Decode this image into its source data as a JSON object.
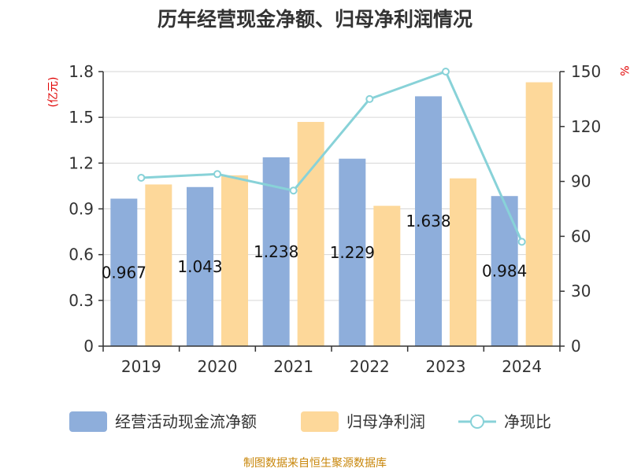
{
  "chart_data": {
    "type": "bar",
    "title": "历年经营现金净额、归母净利润情况",
    "categories": [
      "2019",
      "2020",
      "2021",
      "2022",
      "2023",
      "2024"
    ],
    "series": [
      {
        "name": "经营活动现金流净额",
        "type": "bar",
        "axis": "left",
        "color": "#8eaedb",
        "values": [
          0.967,
          1.043,
          1.238,
          1.229,
          1.638,
          0.984
        ],
        "labels": [
          "0.967",
          "1.043",
          "1.238",
          "1.229",
          "1.638",
          "0.984"
        ]
      },
      {
        "name": "归母净利润",
        "type": "bar",
        "axis": "left",
        "color": "#fdd89a",
        "values": [
          1.06,
          1.12,
          1.47,
          0.92,
          1.1,
          1.73
        ]
      },
      {
        "name": "净现比",
        "type": "line",
        "axis": "right",
        "color": "#88d2d8",
        "values": [
          92,
          94,
          85,
          135,
          150,
          57
        ]
      }
    ],
    "y_left": {
      "unit": "(亿元)",
      "range": [
        0,
        1.8
      ],
      "ticks": [
        "0",
        "0.3",
        "0.6",
        "0.9",
        "1.2",
        "1.5",
        "1.8"
      ]
    },
    "y_right": {
      "unit": "%",
      "range": [
        0,
        150
      ],
      "ticks": [
        "0",
        "30",
        "60",
        "90",
        "120",
        "150"
      ]
    },
    "grid": true,
    "legend_position": "bottom"
  },
  "footer": {
    "source": "制图数据来自恒生聚源数据库"
  }
}
